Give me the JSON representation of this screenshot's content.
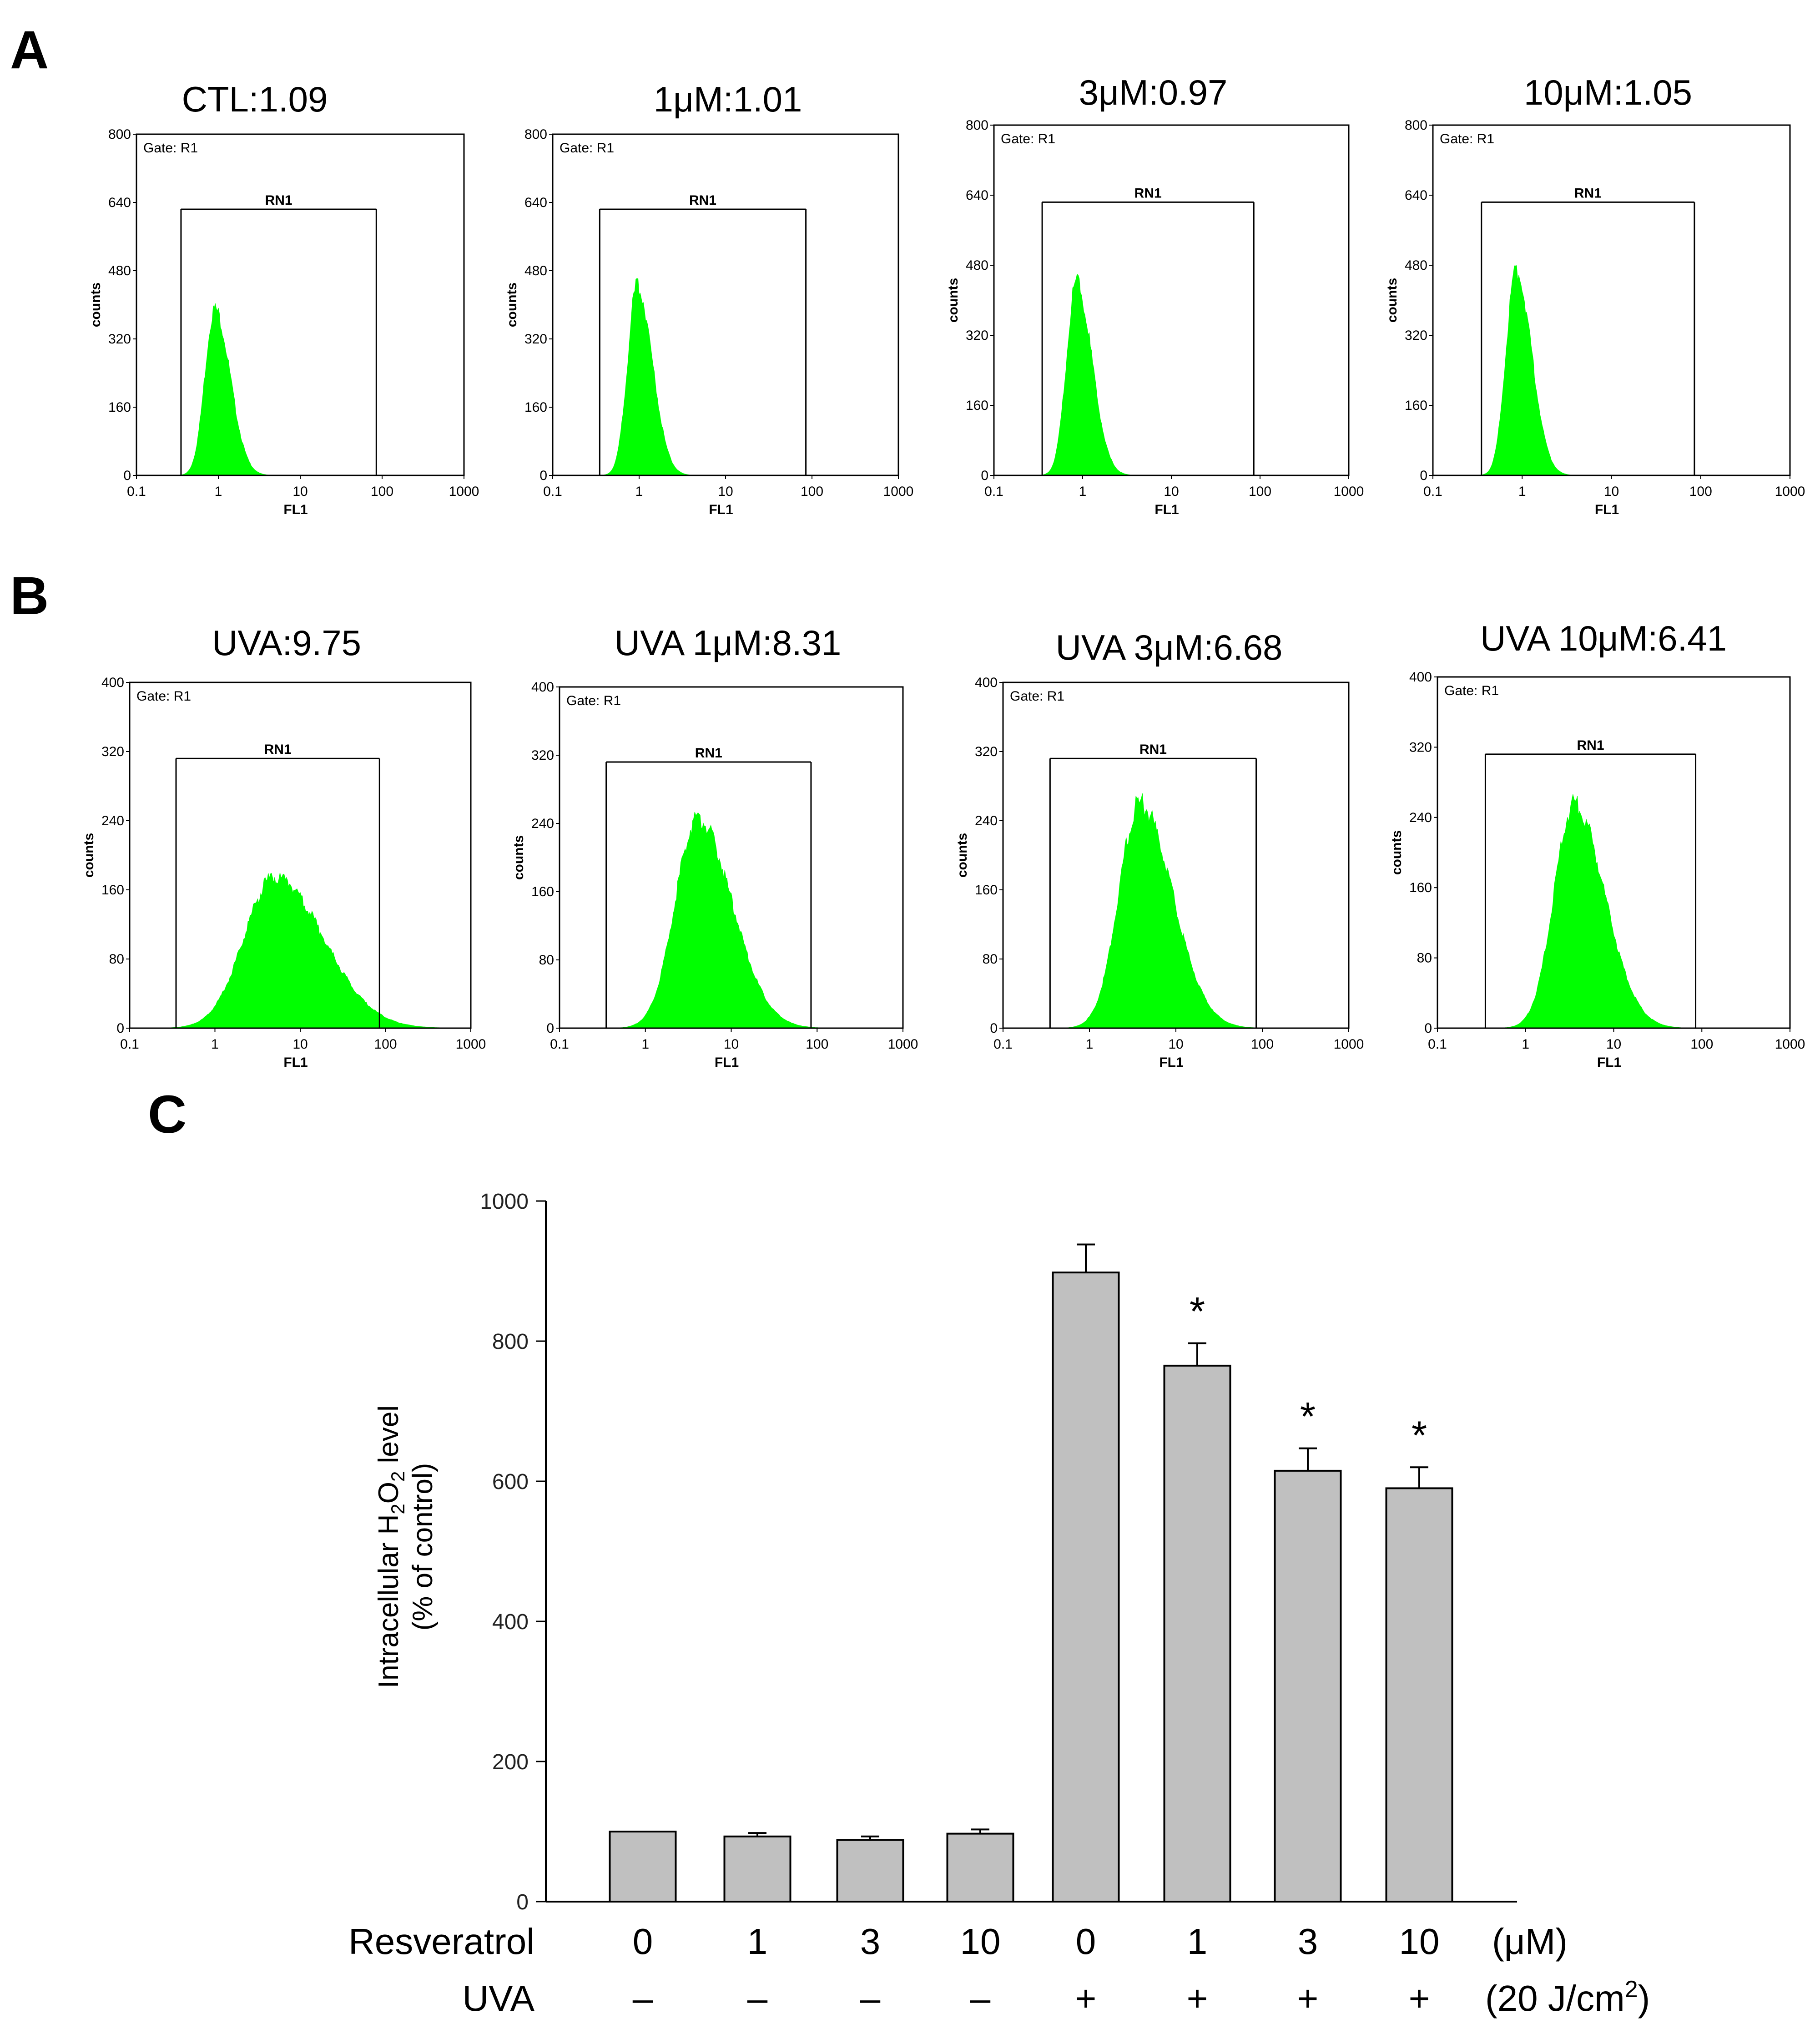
{
  "colors": {
    "histogram_fill": "#00ff00",
    "bar_fill": "#c0c0c0",
    "bar_stroke": "#000000",
    "axis": "#000000"
  },
  "panel_labels": {
    "a": "A",
    "b": "B",
    "c": "C"
  },
  "chart_data": [
    {
      "type": "histogram",
      "panel": "A",
      "title": "CTL:1.09",
      "xlabel": "FL1",
      "ylabel": "counts",
      "xscale": "log",
      "xlim": [
        0.1,
        1000
      ],
      "xticks": [
        "0.1",
        "1",
        "10",
        "100",
        "1000"
      ],
      "ylim": [
        0,
        800
      ],
      "yticks": [
        "0",
        "160",
        "320",
        "480",
        "640",
        "800"
      ],
      "gate_label": "Gate: R1",
      "marker": {
        "name": "RN1",
        "from": 0.35,
        "to": 85
      },
      "peak": {
        "x": 0.9,
        "y": 390,
        "log_width": 0.14
      }
    },
    {
      "type": "histogram",
      "panel": "A",
      "title": "1μM:1.01",
      "xlabel": "FL1",
      "ylabel": "counts",
      "xscale": "log",
      "xlim": [
        0.1,
        1000
      ],
      "xticks": [
        "0.1",
        "1",
        "10",
        "100",
        "1000"
      ],
      "ylim": [
        0,
        800
      ],
      "yticks": [
        "0",
        "160",
        "320",
        "480",
        "640",
        "800"
      ],
      "gate_label": "Gate: R1",
      "marker": {
        "name": "RN1",
        "from": 0.35,
        "to": 85
      },
      "peak": {
        "x": 0.95,
        "y": 445,
        "log_width": 0.13
      }
    },
    {
      "type": "histogram",
      "panel": "A",
      "title": "3μM:0.97",
      "xlabel": "FL1",
      "ylabel": "counts",
      "xscale": "log",
      "xlim": [
        0.1,
        1000
      ],
      "xticks": [
        "0.1",
        "1",
        "10",
        "100",
        "1000"
      ],
      "ylim": [
        0,
        800
      ],
      "yticks": [
        "0",
        "160",
        "320",
        "480",
        "640",
        "800"
      ],
      "gate_label": "Gate: R1",
      "marker": {
        "name": "RN1",
        "from": 0.35,
        "to": 85
      },
      "peak": {
        "x": 0.85,
        "y": 440,
        "log_width": 0.13
      }
    },
    {
      "type": "histogram",
      "panel": "A",
      "title": "10μM:1.05",
      "xlabel": "FL1",
      "ylabel": "counts",
      "xscale": "log",
      "xlim": [
        0.1,
        1000
      ],
      "xticks": [
        "0.1",
        "1",
        "10",
        "100",
        "1000"
      ],
      "ylim": [
        0,
        800
      ],
      "yticks": [
        "0",
        "160",
        "320",
        "480",
        "640",
        "800"
      ],
      "gate_label": "Gate: R1",
      "marker": {
        "name": "RN1",
        "from": 0.35,
        "to": 85
      },
      "peak": {
        "x": 0.85,
        "y": 470,
        "log_width": 0.13
      }
    },
    {
      "type": "histogram",
      "panel": "B",
      "title": "UVA:9.75",
      "xlabel": "FL1",
      "ylabel": "counts",
      "xscale": "log",
      "xlim": [
        0.1,
        1000
      ],
      "xticks": [
        "0.1",
        "1",
        "10",
        "100",
        "1000"
      ],
      "ylim": [
        0,
        400
      ],
      "yticks": [
        "0",
        "80",
        "160",
        "240",
        "320",
        "400"
      ],
      "gate_label": "Gate: R1",
      "marker": {
        "name": "RN1",
        "from": 0.35,
        "to": 85
      },
      "peak": {
        "x": 5.0,
        "y": 175,
        "log_width": 0.42
      }
    },
    {
      "type": "histogram",
      "panel": "B",
      "title": "UVA 1μM:8.31",
      "xlabel": "FL1",
      "ylabel": "counts",
      "xscale": "log",
      "xlim": [
        0.1,
        1000
      ],
      "xticks": [
        "0.1",
        "1",
        "10",
        "100",
        "1000"
      ],
      "ylim": [
        0,
        400
      ],
      "yticks": [
        "0",
        "80",
        "160",
        "240",
        "320",
        "400"
      ],
      "gate_label": "Gate: R1",
      "marker": {
        "name": "RN1",
        "from": 0.35,
        "to": 85
      },
      "peak": {
        "x": 4.0,
        "y": 245,
        "log_width": 0.3
      }
    },
    {
      "type": "histogram",
      "panel": "B",
      "title": "UVA 3μM:6.68",
      "xlabel": "FL1",
      "ylabel": "counts",
      "xscale": "log",
      "xlim": [
        0.1,
        1000
      ],
      "xticks": [
        "0.1",
        "1",
        "10",
        "100",
        "1000"
      ],
      "ylim": [
        0,
        400
      ],
      "yticks": [
        "0",
        "80",
        "160",
        "240",
        "320",
        "400"
      ],
      "gate_label": "Gate: R1",
      "marker": {
        "name": "RN1",
        "from": 0.35,
        "to": 85
      },
      "peak": {
        "x": 3.8,
        "y": 260,
        "log_width": 0.28
      }
    },
    {
      "type": "histogram",
      "panel": "B",
      "title": "UVA 10μM:6.41",
      "xlabel": "FL1",
      "ylabel": "counts",
      "xscale": "log",
      "xlim": [
        0.1,
        1000
      ],
      "xticks": [
        "0.1",
        "1",
        "10",
        "100",
        "1000"
      ],
      "ylim": [
        0,
        400
      ],
      "yticks": [
        "0",
        "80",
        "160",
        "240",
        "320",
        "400"
      ],
      "gate_label": "Gate: R1",
      "marker": {
        "name": "RN1",
        "from": 0.35,
        "to": 85
      },
      "peak": {
        "x": 3.5,
        "y": 255,
        "log_width": 0.26
      }
    },
    {
      "type": "bar",
      "panel": "C",
      "ylabel_line1_parts": [
        "Intracellular H",
        "2",
        "O",
        "2",
        " level"
      ],
      "ylabel_line2": "(% of control)",
      "ylim": [
        0,
        1000
      ],
      "yticks": [
        "0",
        "200",
        "400",
        "600",
        "800",
        "1000"
      ],
      "values": [
        100,
        93,
        88,
        97,
        898,
        765,
        615,
        590
      ],
      "errors": [
        0,
        5,
        5,
        6,
        40,
        32,
        32,
        30
      ],
      "significance": [
        "",
        "",
        "",
        "",
        "",
        "*",
        "*",
        "*"
      ],
      "rows": [
        {
          "label": "Resveratrol",
          "values": [
            "0",
            "1",
            "3",
            "10",
            "0",
            "1",
            "3",
            "10"
          ],
          "unit": "(μM)"
        },
        {
          "label": "UVA",
          "values": [
            "–",
            "–",
            "–",
            "–",
            "+",
            "+",
            "+",
            "+"
          ],
          "unit_parts": [
            "(20 J/cm",
            "2",
            ")"
          ]
        }
      ]
    }
  ]
}
